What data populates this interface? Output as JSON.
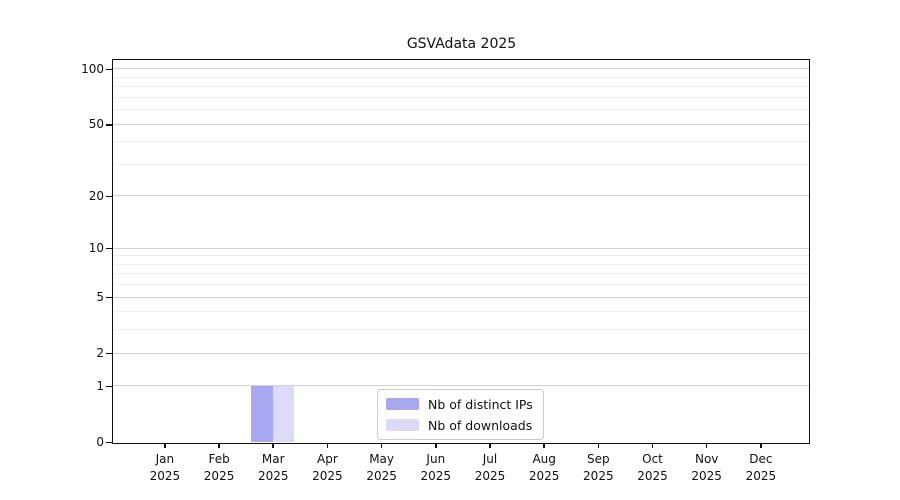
{
  "title": "GSVAdata 2025",
  "chart_data": {
    "type": "bar",
    "title": "GSVAdata 2025",
    "xlabel": "",
    "ylabel": "",
    "year": "2025",
    "categories": [
      "Jan",
      "Feb",
      "Mar",
      "Apr",
      "May",
      "Jun",
      "Jul",
      "Aug",
      "Sep",
      "Oct",
      "Nov",
      "Dec"
    ],
    "series": [
      {
        "name": "Nb of distinct IPs",
        "color": "#a8a8f2",
        "values": [
          0,
          0,
          1,
          0,
          0,
          0,
          0,
          0,
          0,
          0,
          0,
          0
        ]
      },
      {
        "name": "Nb of downloads",
        "color": "#dbdbf8",
        "values": [
          0,
          0,
          1,
          0,
          0,
          0,
          0,
          0,
          0,
          0,
          0,
          0
        ]
      }
    ],
    "y_scale": "log1p",
    "y_max": 111.8,
    "y_ticks": [
      0,
      1,
      2,
      5,
      10,
      20,
      50,
      100
    ],
    "y_tick_labels": [
      "0",
      "1",
      "2",
      "5",
      "10",
      "20",
      "50",
      "100"
    ],
    "y_minor_ticks": [
      3,
      4,
      6,
      7,
      8,
      9,
      30,
      40,
      60,
      70,
      80,
      90
    ],
    "grid": "horizontal",
    "legend_position": "bottom-center"
  },
  "colors": {
    "axis": "#111111",
    "grid_major": "#d2d2d2",
    "grid_minor": "#efefef",
    "legend_border": "#cccccc",
    "background": "#ffffff"
  }
}
